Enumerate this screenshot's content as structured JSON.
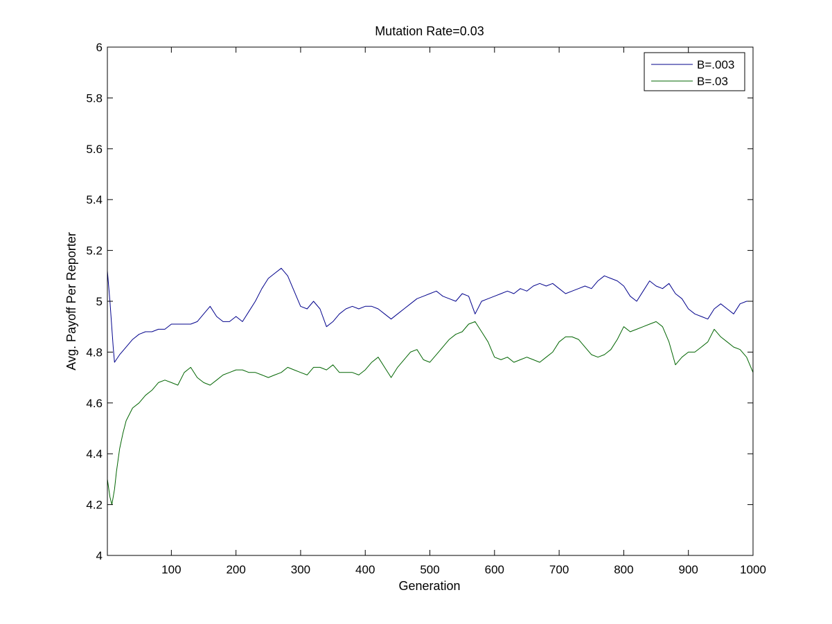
{
  "chart_data": {
    "type": "line",
    "title": "Mutation Rate=0.03",
    "xlabel": "Generation",
    "ylabel": "Avg. Payoff Per Reporter",
    "xlim": [
      1,
      1000
    ],
    "ylim": [
      4,
      6
    ],
    "xticks": [
      100,
      200,
      300,
      400,
      500,
      600,
      700,
      800,
      900,
      1000
    ],
    "yticks": [
      4,
      4.2,
      4.4,
      4.6,
      4.8,
      5,
      5.2,
      5.4,
      5.6,
      5.8,
      6
    ],
    "grid": false,
    "legend_position": "top-right",
    "series": [
      {
        "name": "B=.003",
        "color": "#00008b",
        "points": [
          [
            1,
            5.12
          ],
          [
            5,
            5.0
          ],
          [
            10,
            4.82
          ],
          [
            12,
            4.76
          ],
          [
            20,
            4.79
          ],
          [
            30,
            4.82
          ],
          [
            40,
            4.85
          ],
          [
            50,
            4.87
          ],
          [
            60,
            4.88
          ],
          [
            70,
            4.88
          ],
          [
            80,
            4.89
          ],
          [
            90,
            4.89
          ],
          [
            100,
            4.91
          ],
          [
            110,
            4.91
          ],
          [
            120,
            4.91
          ],
          [
            130,
            4.91
          ],
          [
            140,
            4.92
          ],
          [
            150,
            4.95
          ],
          [
            160,
            4.98
          ],
          [
            170,
            4.94
          ],
          [
            180,
            4.92
          ],
          [
            190,
            4.92
          ],
          [
            200,
            4.94
          ],
          [
            210,
            4.92
          ],
          [
            220,
            4.96
          ],
          [
            230,
            5.0
          ],
          [
            240,
            5.05
          ],
          [
            250,
            5.09
          ],
          [
            260,
            5.11
          ],
          [
            270,
            5.13
          ],
          [
            280,
            5.1
          ],
          [
            290,
            5.04
          ],
          [
            300,
            4.98
          ],
          [
            310,
            4.97
          ],
          [
            320,
            5.0
          ],
          [
            330,
            4.97
          ],
          [
            340,
            4.9
          ],
          [
            350,
            4.92
          ],
          [
            360,
            4.95
          ],
          [
            370,
            4.97
          ],
          [
            380,
            4.98
          ],
          [
            390,
            4.97
          ],
          [
            400,
            4.98
          ],
          [
            410,
            4.98
          ],
          [
            420,
            4.97
          ],
          [
            430,
            4.95
          ],
          [
            440,
            4.93
          ],
          [
            450,
            4.95
          ],
          [
            460,
            4.97
          ],
          [
            470,
            4.99
          ],
          [
            480,
            5.01
          ],
          [
            490,
            5.02
          ],
          [
            500,
            5.03
          ],
          [
            510,
            5.04
          ],
          [
            520,
            5.02
          ],
          [
            530,
            5.01
          ],
          [
            540,
            5.0
          ],
          [
            550,
            5.03
          ],
          [
            560,
            5.02
          ],
          [
            570,
            4.95
          ],
          [
            580,
            5.0
          ],
          [
            590,
            5.01
          ],
          [
            600,
            5.02
          ],
          [
            610,
            5.03
          ],
          [
            620,
            5.04
          ],
          [
            630,
            5.03
          ],
          [
            640,
            5.05
          ],
          [
            650,
            5.04
          ],
          [
            660,
            5.06
          ],
          [
            670,
            5.07
          ],
          [
            680,
            5.06
          ],
          [
            690,
            5.07
          ],
          [
            700,
            5.05
          ],
          [
            710,
            5.03
          ],
          [
            720,
            5.04
          ],
          [
            730,
            5.05
          ],
          [
            740,
            5.06
          ],
          [
            750,
            5.05
          ],
          [
            760,
            5.08
          ],
          [
            770,
            5.1
          ],
          [
            780,
            5.09
          ],
          [
            790,
            5.08
          ],
          [
            800,
            5.06
          ],
          [
            810,
            5.02
          ],
          [
            820,
            5.0
          ],
          [
            830,
            5.04
          ],
          [
            840,
            5.08
          ],
          [
            850,
            5.06
          ],
          [
            860,
            5.05
          ],
          [
            870,
            5.07
          ],
          [
            880,
            5.03
          ],
          [
            890,
            5.01
          ],
          [
            900,
            4.97
          ],
          [
            910,
            4.95
          ],
          [
            920,
            4.94
          ],
          [
            930,
            4.93
          ],
          [
            940,
            4.97
          ],
          [
            950,
            4.99
          ],
          [
            960,
            4.97
          ],
          [
            970,
            4.95
          ],
          [
            980,
            4.99
          ],
          [
            990,
            5.0
          ],
          [
            1000,
            5.0
          ]
        ]
      },
      {
        "name": "B=.03",
        "color": "#006400",
        "points": [
          [
            1,
            4.3
          ],
          [
            5,
            4.23
          ],
          [
            8,
            4.2
          ],
          [
            12,
            4.26
          ],
          [
            15,
            4.33
          ],
          [
            20,
            4.42
          ],
          [
            25,
            4.48
          ],
          [
            30,
            4.53
          ],
          [
            40,
            4.58
          ],
          [
            50,
            4.6
          ],
          [
            60,
            4.63
          ],
          [
            70,
            4.65
          ],
          [
            80,
            4.68
          ],
          [
            90,
            4.69
          ],
          [
            100,
            4.68
          ],
          [
            110,
            4.67
          ],
          [
            120,
            4.72
          ],
          [
            130,
            4.74
          ],
          [
            140,
            4.7
          ],
          [
            150,
            4.68
          ],
          [
            160,
            4.67
          ],
          [
            170,
            4.69
          ],
          [
            180,
            4.71
          ],
          [
            190,
            4.72
          ],
          [
            200,
            4.73
          ],
          [
            210,
            4.73
          ],
          [
            220,
            4.72
          ],
          [
            230,
            4.72
          ],
          [
            240,
            4.71
          ],
          [
            250,
            4.7
          ],
          [
            260,
            4.71
          ],
          [
            270,
            4.72
          ],
          [
            280,
            4.74
          ],
          [
            290,
            4.73
          ],
          [
            300,
            4.72
          ],
          [
            310,
            4.71
          ],
          [
            320,
            4.74
          ],
          [
            330,
            4.74
          ],
          [
            340,
            4.73
          ],
          [
            350,
            4.75
          ],
          [
            360,
            4.72
          ],
          [
            370,
            4.72
          ],
          [
            380,
            4.72
          ],
          [
            390,
            4.71
          ],
          [
            400,
            4.73
          ],
          [
            410,
            4.76
          ],
          [
            420,
            4.78
          ],
          [
            430,
            4.74
          ],
          [
            440,
            4.7
          ],
          [
            450,
            4.74
          ],
          [
            460,
            4.77
          ],
          [
            470,
            4.8
          ],
          [
            480,
            4.81
          ],
          [
            490,
            4.77
          ],
          [
            500,
            4.76
          ],
          [
            510,
            4.79
          ],
          [
            520,
            4.82
          ],
          [
            530,
            4.85
          ],
          [
            540,
            4.87
          ],
          [
            550,
            4.88
          ],
          [
            560,
            4.91
          ],
          [
            570,
            4.92
          ],
          [
            580,
            4.88
          ],
          [
            590,
            4.84
          ],
          [
            600,
            4.78
          ],
          [
            610,
            4.77
          ],
          [
            620,
            4.78
          ],
          [
            630,
            4.76
          ],
          [
            640,
            4.77
          ],
          [
            650,
            4.78
          ],
          [
            660,
            4.77
          ],
          [
            670,
            4.76
          ],
          [
            680,
            4.78
          ],
          [
            690,
            4.8
          ],
          [
            700,
            4.84
          ],
          [
            710,
            4.86
          ],
          [
            720,
            4.86
          ],
          [
            730,
            4.85
          ],
          [
            740,
            4.82
          ],
          [
            750,
            4.79
          ],
          [
            760,
            4.78
          ],
          [
            770,
            4.79
          ],
          [
            780,
            4.81
          ],
          [
            790,
            4.85
          ],
          [
            800,
            4.9
          ],
          [
            810,
            4.88
          ],
          [
            820,
            4.89
          ],
          [
            830,
            4.9
          ],
          [
            840,
            4.91
          ],
          [
            850,
            4.92
          ],
          [
            860,
            4.9
          ],
          [
            870,
            4.84
          ],
          [
            880,
            4.75
          ],
          [
            890,
            4.78
          ],
          [
            900,
            4.8
          ],
          [
            910,
            4.8
          ],
          [
            920,
            4.82
          ],
          [
            930,
            4.84
          ],
          [
            940,
            4.89
          ],
          [
            950,
            4.86
          ],
          [
            960,
            4.84
          ],
          [
            970,
            4.82
          ],
          [
            980,
            4.81
          ],
          [
            990,
            4.78
          ],
          [
            1000,
            4.72
          ]
        ]
      }
    ]
  }
}
